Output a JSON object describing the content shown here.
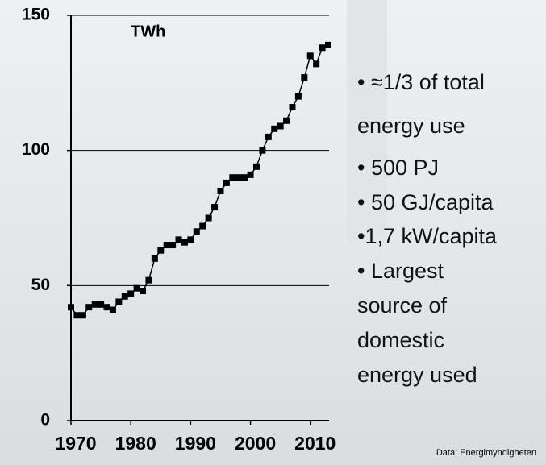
{
  "chart_data": {
    "type": "line",
    "unit_label": "TWh",
    "x": [
      1970,
      1971,
      1972,
      1973,
      1974,
      1975,
      1976,
      1977,
      1978,
      1979,
      1980,
      1981,
      1982,
      1983,
      1984,
      1985,
      1986,
      1987,
      1988,
      1989,
      1990,
      1991,
      1992,
      1993,
      1994,
      1995,
      1996,
      1997,
      1998,
      1999,
      2000,
      2001,
      2002,
      2003,
      2004,
      2005,
      2006,
      2007,
      2008,
      2009,
      2010,
      2011,
      2012,
      2013
    ],
    "values": [
      42,
      39,
      39,
      42,
      43,
      43,
      42,
      41,
      44,
      46,
      47,
      49,
      48,
      52,
      60,
      63,
      65,
      65,
      67,
      66,
      67,
      70,
      72,
      75,
      79,
      85,
      88,
      90,
      90,
      90,
      91,
      94,
      100,
      105,
      108,
      109,
      111,
      116,
      120,
      127,
      135,
      132,
      138,
      139
    ],
    "color": "#000000",
    "xlim": [
      1970,
      2013
    ],
    "xticks": [
      1970,
      1980,
      1990,
      2000,
      2010
    ],
    "ylim": [
      0,
      150
    ],
    "yticks": [
      0,
      50,
      100,
      150
    ],
    "grid": true,
    "annotations": [
      "• ≈1/3 of total",
      "energy use",
      "• 500  PJ",
      "• 50 GJ/capita",
      "•1,7 kW/capita",
      "• Largest",
      "source of",
      "domestic",
      "energy used"
    ],
    "source": "Data: Energimyndigheten"
  }
}
